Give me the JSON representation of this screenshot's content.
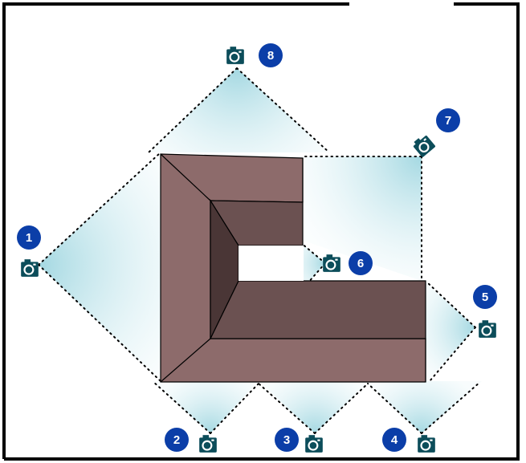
{
  "colors": {
    "wall": "#000000",
    "roof_light": "#8d6b6b",
    "roof_mid": "#6b5151",
    "roof_dark": "#4a3636",
    "fov": "#b7e1e8",
    "camera": "#0c4d5a",
    "badge": "#0b3ea8",
    "badge_text": "#ffffff"
  },
  "cameras": [
    {
      "number": "1",
      "icon": "camera-icon"
    },
    {
      "number": "2",
      "icon": "camera-icon"
    },
    {
      "number": "3",
      "icon": "camera-icon"
    },
    {
      "number": "4",
      "icon": "camera-icon"
    },
    {
      "number": "5",
      "icon": "camera-icon"
    },
    {
      "number": "6",
      "icon": "camera-icon"
    },
    {
      "number": "7",
      "icon": "camera-icon"
    },
    {
      "number": "8",
      "icon": "camera-icon"
    }
  ]
}
